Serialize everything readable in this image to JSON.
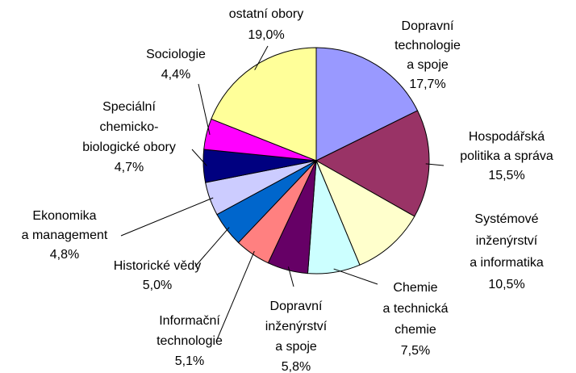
{
  "chart_data": {
    "type": "pie",
    "categories": [
      "Dopravní\ntechnologie\na spoje",
      "Hospodářská\npolitika a správa",
      "Systémové\ninženýrství\na informatika",
      "Chemie\na technická\nchemie",
      "Dopravní\ninženýrství\na spoje",
      "Informační\ntechnologie",
      "Historické vědy",
      "Ekonomika\na management",
      "Speciální\nchemicko-\nbiologické obory",
      "Sociologie",
      "ostatní obory"
    ],
    "values": [
      17.7,
      15.5,
      10.5,
      7.5,
      5.8,
      5.1,
      5.0,
      4.8,
      4.7,
      4.4,
      19.0
    ],
    "value_labels": [
      "17,7%",
      "15,5%",
      "10,5%",
      "7,5%",
      "5,8%",
      "5,1%",
      "5,0%",
      "4,8%",
      "4,7%",
      "4,4%",
      "19,0%"
    ],
    "colors": [
      "#9999FF",
      "#993366",
      "#FFFFCC",
      "#CCFFFF",
      "#660066",
      "#FF8080",
      "#0066CC",
      "#CCCCFF",
      "#000080",
      "#FF00FF",
      "#FFFF99"
    ]
  }
}
